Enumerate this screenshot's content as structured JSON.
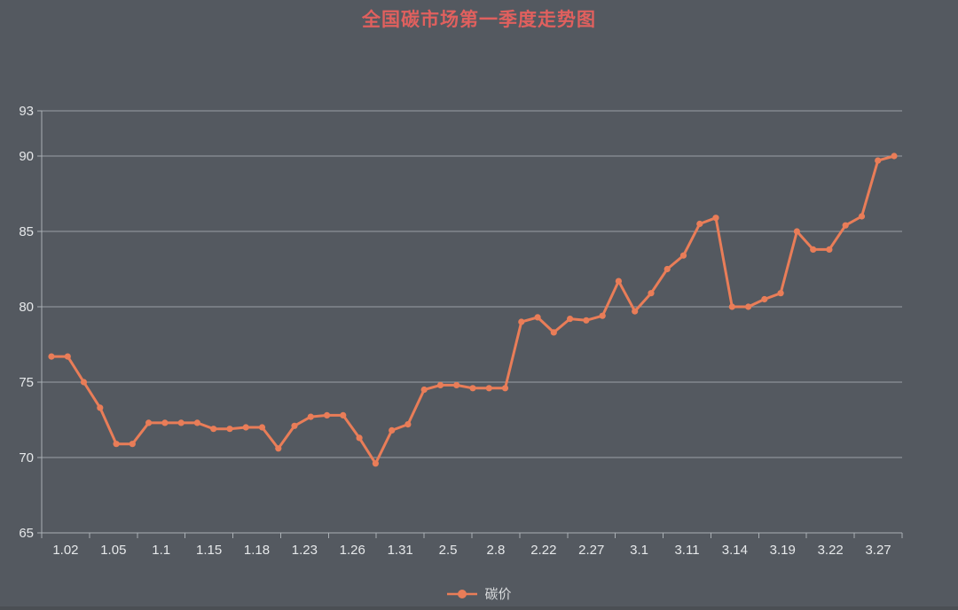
{
  "title": {
    "text": "全国碳市场第一季度走势图",
    "color": "#e0605e"
  },
  "legend": {
    "items": [
      {
        "label": "碳价",
        "color": "#e97d58"
      }
    ]
  },
  "colors": {
    "background": "#545960",
    "grid_line": "#9aa0a6",
    "axis_line": "#aab0b5",
    "axis_label": "#e6e8ea",
    "legend_text": "#d9dbdd",
    "series_line": "#e97d58",
    "footer_strip": "#4b4f54"
  },
  "chart_data": {
    "type": "line",
    "title": "全国碳市场第一季度走势图",
    "legend_position": "bottom",
    "grid": true,
    "ylim": [
      65,
      93
    ],
    "y_ticks": [
      65,
      70,
      75,
      80,
      85,
      90,
      93
    ],
    "x_tick_labels": [
      "1.02",
      "1.05",
      "1.1",
      "1.15",
      "1.18",
      "1.23",
      "1.26",
      "1.31",
      "2.5",
      "2.8",
      "2.22",
      "2.27",
      "3.1",
      "3.11",
      "3.14",
      "3.19",
      "3.22",
      "3.27"
    ],
    "points_per_label": 3,
    "series": [
      {
        "name": "碳价",
        "color": "#e97d58",
        "values": [
          76.7,
          76.7,
          75.0,
          73.3,
          70.9,
          70.9,
          72.3,
          72.3,
          72.3,
          72.3,
          71.9,
          71.9,
          72.0,
          72.0,
          70.6,
          72.1,
          72.7,
          72.8,
          72.8,
          71.3,
          69.6,
          71.8,
          72.2,
          74.5,
          74.8,
          74.8,
          74.6,
          74.6,
          74.6,
          79.0,
          79.3,
          78.3,
          79.2,
          79.1,
          79.4,
          81.7,
          79.7,
          80.9,
          82.5,
          83.4,
          85.5,
          85.9,
          80.0,
          80.0,
          80.5,
          80.9,
          85.0,
          83.8,
          83.8,
          85.4,
          86.0,
          89.7,
          90.0
        ]
      }
    ]
  }
}
